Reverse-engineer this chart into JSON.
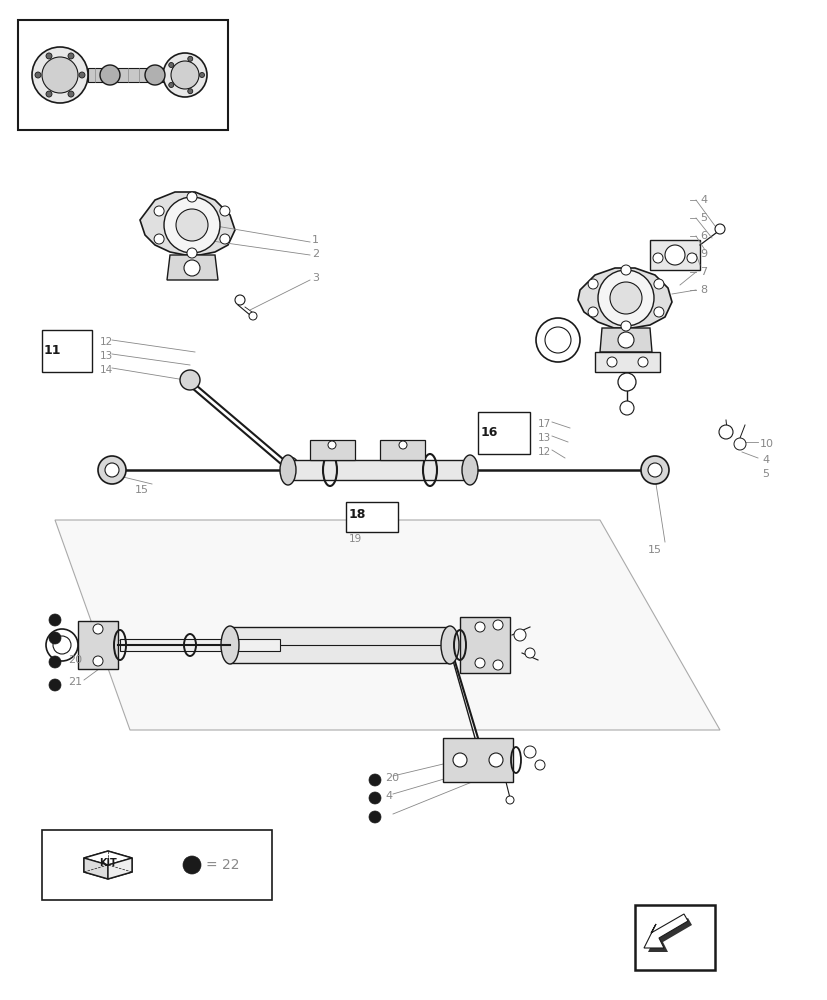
{
  "bg_color": "#ffffff",
  "lc": "#1a1a1a",
  "gc": "#888888",
  "fig_width": 8.28,
  "fig_height": 10.0,
  "dpi": 100,
  "xlim": [
    0,
    828
  ],
  "ylim": [
    0,
    1000
  ]
}
